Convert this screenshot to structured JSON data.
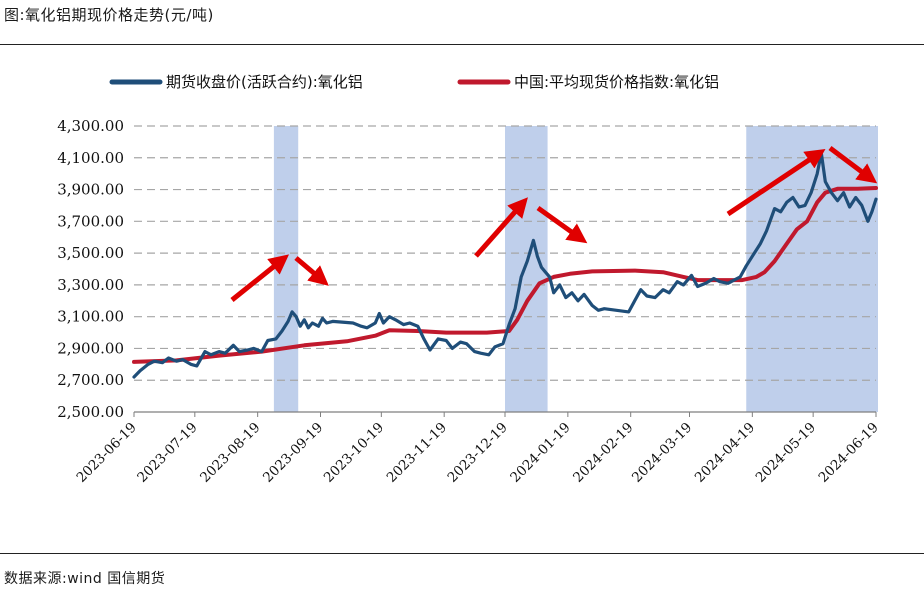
{
  "figure": {
    "title": "图:氧化铝期现价格走势(元/吨)",
    "source": "数据来源:wind 国信期货"
  },
  "chart_data": {
    "type": "line",
    "ylim": [
      2500,
      4300
    ],
    "y_ticks": [
      2500,
      2700,
      2900,
      3100,
      3300,
      3500,
      3700,
      3900,
      4100,
      4300
    ],
    "y_tick_labels": [
      "2,500.00",
      "2,700.00",
      "2,900.00",
      "3,100.00",
      "3,300.00",
      "3,500.00",
      "3,700.00",
      "3,900.00",
      "4,100.00",
      "4,300.00"
    ],
    "x_range": [
      "2023-06-19",
      "2024-06-19"
    ],
    "x_tick_labels": [
      "2023-06-19",
      "2023-07-19",
      "2023-08-19",
      "2023-09-19",
      "2023-10-19",
      "2023-11-19",
      "2023-12-19",
      "2024-01-19",
      "2024-02-19",
      "2024-03-19",
      "2024-04-19",
      "2024-05-19",
      "2024-06-19"
    ],
    "grid": "horizontal-dashed",
    "legend": "top",
    "shaded_periods": [
      [
        "2023-08-27",
        "2023-09-08"
      ],
      [
        "2023-12-19",
        "2024-01-09"
      ],
      [
        "2024-04-16",
        "2024-06-21"
      ]
    ],
    "arrows_color": "#e00000",
    "series": [
      {
        "name": "期货收盘价(活跃合约):氧化铝",
        "color": "#1f4e79",
        "points": [
          [
            "2023-06-19",
            2720
          ],
          [
            "2023-06-22",
            2760
          ],
          [
            "2023-06-26",
            2800
          ],
          [
            "2023-06-29",
            2820
          ],
          [
            "2023-07-03",
            2810
          ],
          [
            "2023-07-06",
            2840
          ],
          [
            "2023-07-10",
            2820
          ],
          [
            "2023-07-13",
            2830
          ],
          [
            "2023-07-17",
            2800
          ],
          [
            "2023-07-20",
            2790
          ],
          [
            "2023-07-24",
            2880
          ],
          [
            "2023-07-27",
            2860
          ],
          [
            "2023-07-31",
            2880
          ],
          [
            "2023-08-03",
            2870
          ],
          [
            "2023-08-07",
            2920
          ],
          [
            "2023-08-10",
            2880
          ],
          [
            "2023-08-14",
            2890
          ],
          [
            "2023-08-17",
            2900
          ],
          [
            "2023-08-21",
            2880
          ],
          [
            "2023-08-24",
            2950
          ],
          [
            "2023-08-28",
            2960
          ],
          [
            "2023-08-31",
            3010
          ],
          [
            "2023-09-03",
            3070
          ],
          [
            "2023-09-05",
            3130
          ],
          [
            "2023-09-07",
            3100
          ],
          [
            "2023-09-09",
            3040
          ],
          [
            "2023-09-11",
            3080
          ],
          [
            "2023-09-13",
            3030
          ],
          [
            "2023-09-15",
            3060
          ],
          [
            "2023-09-18",
            3040
          ],
          [
            "2023-09-20",
            3090
          ],
          [
            "2023-09-22",
            3060
          ],
          [
            "2023-09-25",
            3070
          ],
          [
            "2023-10-05",
            3060
          ],
          [
            "2023-10-09",
            3040
          ],
          [
            "2023-10-12",
            3030
          ],
          [
            "2023-10-16",
            3060
          ],
          [
            "2023-10-18",
            3120
          ],
          [
            "2023-10-20",
            3060
          ],
          [
            "2023-10-23",
            3100
          ],
          [
            "2023-10-26",
            3080
          ],
          [
            "2023-10-30",
            3050
          ],
          [
            "2023-11-02",
            3060
          ],
          [
            "2023-11-06",
            3040
          ],
          [
            "2023-11-09",
            2960
          ],
          [
            "2023-11-12",
            2890
          ],
          [
            "2023-11-16",
            2960
          ],
          [
            "2023-11-20",
            2950
          ],
          [
            "2023-11-23",
            2900
          ],
          [
            "2023-11-27",
            2940
          ],
          [
            "2023-11-30",
            2930
          ],
          [
            "2023-12-04",
            2880
          ],
          [
            "2023-12-07",
            2870
          ],
          [
            "2023-12-11",
            2860
          ],
          [
            "2023-12-14",
            2910
          ],
          [
            "2023-12-18",
            2930
          ],
          [
            "2023-12-21",
            3050
          ],
          [
            "2023-12-24",
            3150
          ],
          [
            "2023-12-27",
            3350
          ],
          [
            "2023-12-30",
            3450
          ],
          [
            "2024-01-02",
            3580
          ],
          [
            "2024-01-04",
            3480
          ],
          [
            "2024-01-06",
            3410
          ],
          [
            "2024-01-08",
            3380
          ],
          [
            "2024-01-10",
            3350
          ],
          [
            "2024-01-12",
            3250
          ],
          [
            "2024-01-15",
            3300
          ],
          [
            "2024-01-18",
            3220
          ],
          [
            "2024-01-21",
            3250
          ],
          [
            "2024-01-24",
            3200
          ],
          [
            "2024-01-27",
            3240
          ],
          [
            "2024-01-31",
            3170
          ],
          [
            "2024-02-03",
            3140
          ],
          [
            "2024-02-06",
            3150
          ],
          [
            "2024-02-18",
            3130
          ],
          [
            "2024-02-21",
            3200
          ],
          [
            "2024-02-24",
            3270
          ],
          [
            "2024-02-27",
            3230
          ],
          [
            "2024-03-02",
            3220
          ],
          [
            "2024-03-06",
            3270
          ],
          [
            "2024-03-09",
            3250
          ],
          [
            "2024-03-13",
            3320
          ],
          [
            "2024-03-16",
            3300
          ],
          [
            "2024-03-20",
            3360
          ],
          [
            "2024-03-23",
            3290
          ],
          [
            "2024-03-27",
            3310
          ],
          [
            "2024-03-31",
            3340
          ],
          [
            "2024-04-03",
            3320
          ],
          [
            "2024-04-07",
            3310
          ],
          [
            "2024-04-10",
            3330
          ],
          [
            "2024-04-13",
            3350
          ],
          [
            "2024-04-16",
            3420
          ],
          [
            "2024-04-19",
            3480
          ],
          [
            "2024-04-23",
            3560
          ],
          [
            "2024-04-26",
            3640
          ],
          [
            "2024-04-30",
            3780
          ],
          [
            "2024-05-03",
            3760
          ],
          [
            "2024-05-06",
            3820
          ],
          [
            "2024-05-09",
            3850
          ],
          [
            "2024-05-12",
            3790
          ],
          [
            "2024-05-15",
            3800
          ],
          [
            "2024-05-18",
            3880
          ],
          [
            "2024-05-21",
            4000
          ],
          [
            "2024-05-23",
            4130
          ],
          [
            "2024-05-25",
            3950
          ],
          [
            "2024-05-28",
            3880
          ],
          [
            "2024-05-31",
            3830
          ],
          [
            "2024-06-03",
            3880
          ],
          [
            "2024-06-06",
            3790
          ],
          [
            "2024-06-09",
            3850
          ],
          [
            "2024-06-12",
            3800
          ],
          [
            "2024-06-15",
            3700
          ],
          [
            "2024-06-17",
            3760
          ],
          [
            "2024-06-19",
            3840
          ]
        ]
      },
      {
        "name": "中国:平均现货价格指数:氧化铝",
        "color": "#c0192d",
        "points": [
          [
            "2023-06-19",
            2815
          ],
          [
            "2023-07-10",
            2825
          ],
          [
            "2023-07-31",
            2855
          ],
          [
            "2023-08-21",
            2880
          ],
          [
            "2023-09-11",
            2920
          ],
          [
            "2023-10-02",
            2945
          ],
          [
            "2023-10-16",
            2980
          ],
          [
            "2023-10-23",
            3015
          ],
          [
            "2023-11-06",
            3010
          ],
          [
            "2023-11-20",
            3000
          ],
          [
            "2023-12-10",
            3000
          ],
          [
            "2023-12-21",
            3010
          ],
          [
            "2023-12-25",
            3080
          ],
          [
            "2023-12-30",
            3200
          ],
          [
            "2024-01-05",
            3310
          ],
          [
            "2024-01-12",
            3350
          ],
          [
            "2024-01-20",
            3370
          ],
          [
            "2024-01-31",
            3385
          ],
          [
            "2024-02-21",
            3390
          ],
          [
            "2024-03-06",
            3380
          ],
          [
            "2024-03-16",
            3350
          ],
          [
            "2024-03-23",
            3330
          ],
          [
            "2024-04-07",
            3330
          ],
          [
            "2024-04-14",
            3330
          ],
          [
            "2024-04-21",
            3350
          ],
          [
            "2024-04-25",
            3380
          ],
          [
            "2024-04-30",
            3450
          ],
          [
            "2024-05-06",
            3560
          ],
          [
            "2024-05-11",
            3650
          ],
          [
            "2024-05-16",
            3700
          ],
          [
            "2024-05-21",
            3820
          ],
          [
            "2024-05-25",
            3880
          ],
          [
            "2024-05-31",
            3905
          ],
          [
            "2024-06-10",
            3905
          ],
          [
            "2024-06-19",
            3910
          ]
        ]
      }
    ]
  }
}
